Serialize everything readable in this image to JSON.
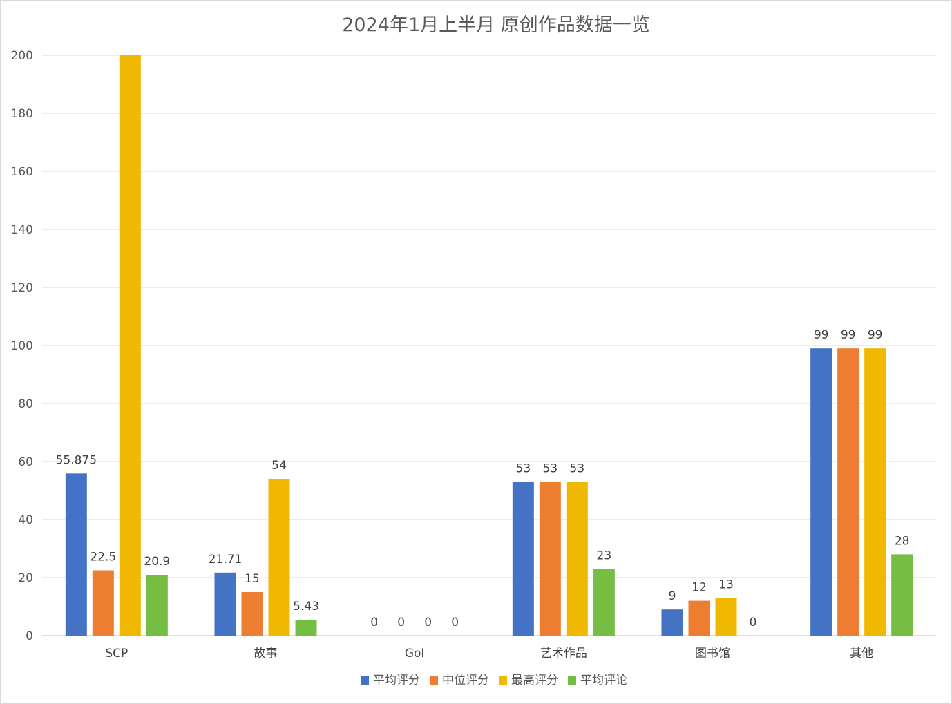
{
  "chart_data": {
    "type": "bar",
    "title": "2024年1月上半月  原创作品数据一览",
    "xlabel": "",
    "ylabel": "",
    "ylim": [
      0,
      200
    ],
    "yticks": [
      0,
      20,
      40,
      60,
      80,
      100,
      120,
      140,
      160,
      180,
      200
    ],
    "grid": true,
    "legend_position": "bottom",
    "categories": [
      "SCP",
      "故事",
      "GoI",
      "艺术作品",
      "图书馆",
      "其他"
    ],
    "series": [
      {
        "name": "平均评分",
        "color": "#4472C4",
        "values": [
          55.875,
          21.71,
          0,
          53,
          9,
          99
        ],
        "labels": [
          "55.875",
          "21.71",
          "0",
          "53",
          "9",
          "99"
        ]
      },
      {
        "name": "中位评分",
        "color": "#ED7D31",
        "values": [
          22.5,
          15,
          0,
          53,
          12,
          99
        ],
        "labels": [
          "22.5",
          "15",
          "0",
          "53",
          "12",
          "99"
        ]
      },
      {
        "name": "最高评分",
        "color": "#F0B800",
        "values": [
          200,
          54,
          0,
          53,
          13,
          99
        ],
        "labels": [
          "",
          "54",
          "0",
          "53",
          "13",
          "99"
        ]
      },
      {
        "name": "平均评论",
        "color": "#76BE43",
        "values": [
          20.9,
          5.43,
          0,
          23,
          0,
          28
        ],
        "labels": [
          "20.9",
          "5.43",
          "0",
          "23",
          "0",
          "28"
        ]
      }
    ]
  }
}
